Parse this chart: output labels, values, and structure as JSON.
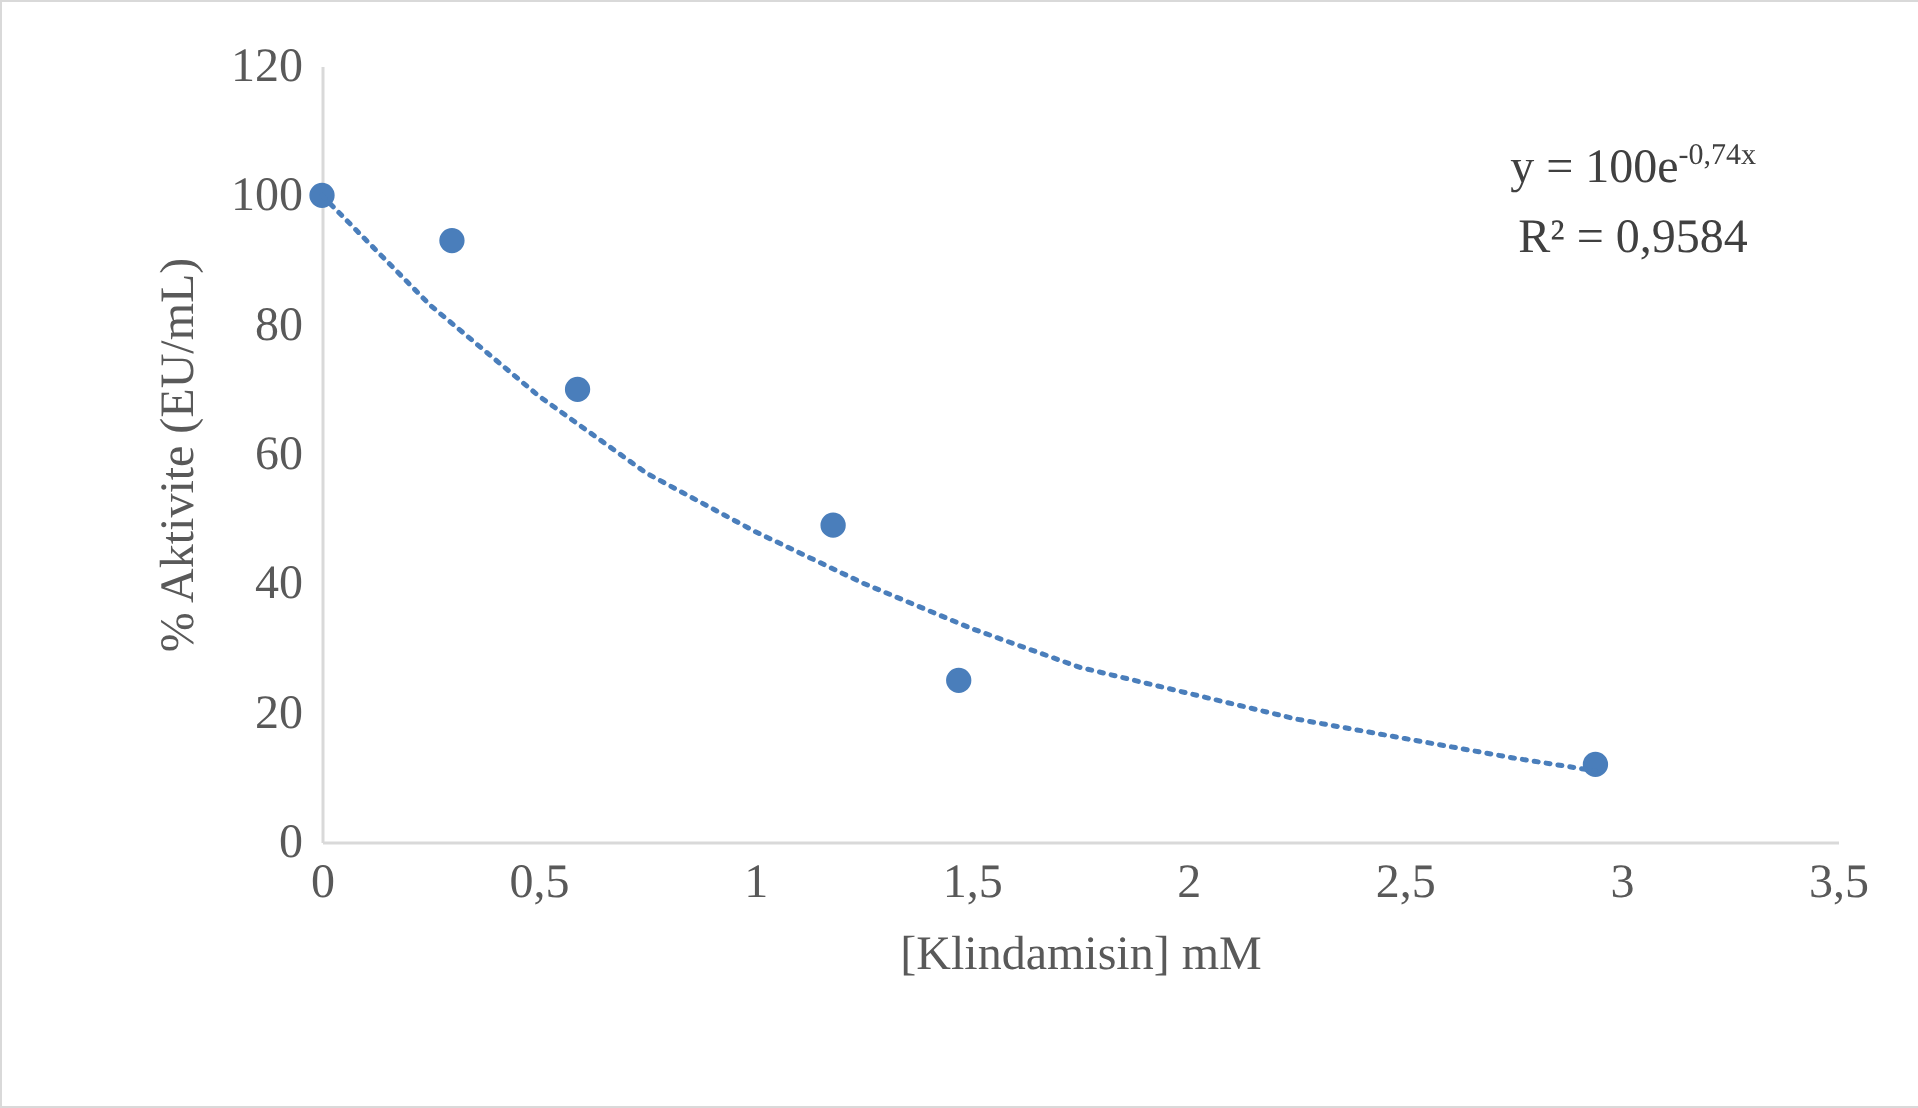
{
  "chart_data": {
    "type": "scatter",
    "xlabel": "[Klindamisin] mM",
    "ylabel": "% Aktivite (EU/mL)",
    "xlim": [
      0,
      3.5
    ],
    "xticks": [
      0,
      {
        "value": 0.5,
        "label": "0,5"
      },
      1,
      {
        "value": 1.5,
        "label": "1,5"
      },
      2,
      {
        "value": 2.5,
        "label": "2,5"
      },
      3,
      {
        "value": 3.5,
        "label": "3,5"
      }
    ],
    "ylim": [
      0,
      120
    ],
    "yticks": [
      0,
      20,
      40,
      60,
      80,
      100,
      120
    ],
    "grid": false,
    "marker": "circle",
    "series": [
      {
        "color": "#4a7ebb",
        "x": [
          0,
          0.3,
          0.59,
          1.18,
          1.47,
          2.94
        ],
        "values": [
          100,
          93,
          70,
          49,
          25,
          12
        ]
      },
      {
        "type": "line",
        "color": "#4a7ebb",
        "line_style": "dotted",
        "marker": "none",
        "x": [
          0,
          0.25,
          0.5,
          0.75,
          1,
          1.25,
          1.5,
          1.75,
          2,
          2.25,
          2.5,
          2.75,
          2.94
        ],
        "values": [
          100,
          83,
          69,
          57,
          48,
          40,
          33,
          27,
          23,
          19,
          16,
          13,
          11
        ]
      }
    ],
    "annotations": [
      "y = 100e$^{-0,74x}$",
      "R² = 0,9584"
    ]
  }
}
